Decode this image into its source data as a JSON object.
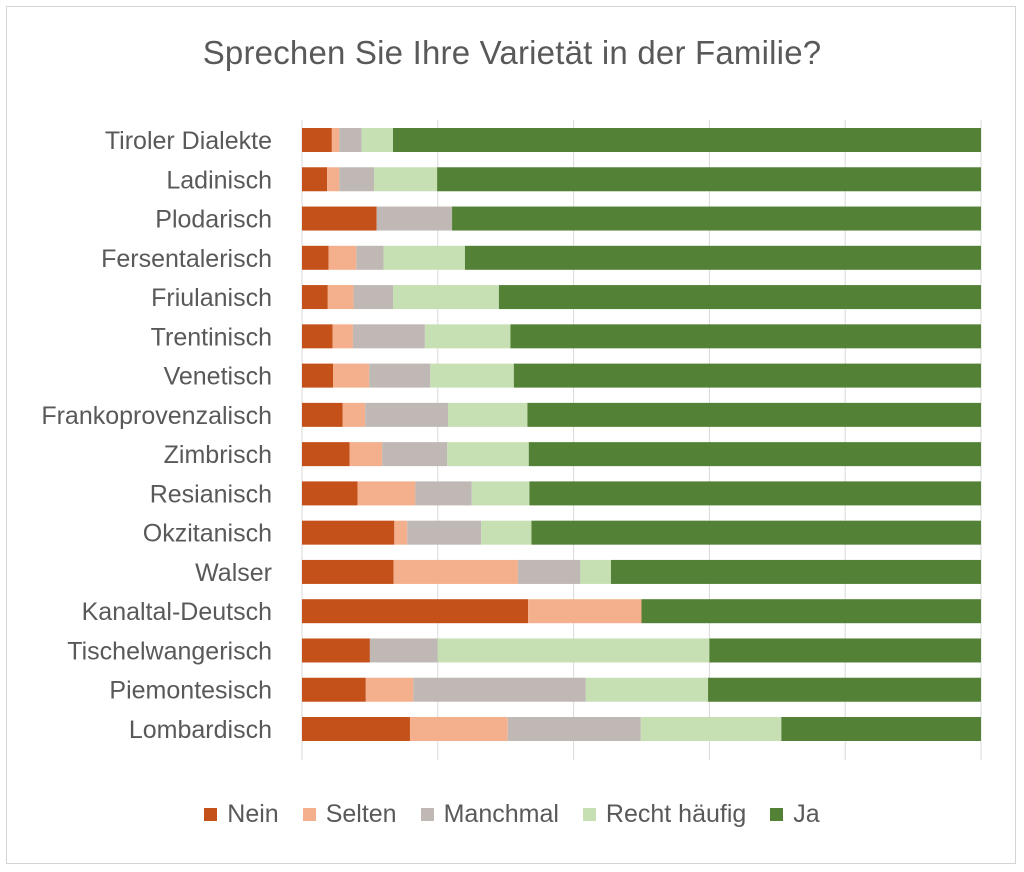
{
  "chart_data": {
    "type": "bar",
    "orientation": "horizontal",
    "stacked": true,
    "percent": true,
    "title": "Sprechen Sie Ihre Varietät in der Familie?",
    "xlim": [
      0,
      100
    ],
    "grid": true,
    "legend_position": "bottom",
    "categories": [
      "Tiroler Dialekte",
      "Ladinisch",
      "Plodarisch",
      "Fersentalerisch",
      "Friulanisch",
      "Trentinisch",
      "Venetisch",
      "Frankoprovenzalisch",
      "Zimbrisch",
      "Resianisch",
      "Okzitanisch",
      "Walser",
      "Kanaltal-Deutsch",
      "Tischelwangerisch",
      "Piemontesisch",
      "Lombardisch"
    ],
    "series": [
      {
        "name": "Nein",
        "color": "#c5511a",
        "values": [
          4.4,
          3.7,
          11.0,
          3.9,
          3.8,
          4.5,
          4.6,
          6.0,
          7.0,
          8.2,
          13.6,
          13.5,
          33.3,
          10.0,
          9.4,
          15.9
        ]
      },
      {
        "name": "Selten",
        "color": "#f4b08c",
        "values": [
          1.1,
          1.8,
          0.0,
          4.1,
          3.8,
          3.0,
          5.3,
          3.3,
          4.8,
          8.5,
          1.9,
          18.3,
          16.7,
          0.0,
          7.0,
          14.4
        ]
      },
      {
        "name": "Manchmal",
        "color": "#bfb8b4",
        "values": [
          3.3,
          5.1,
          11.1,
          4.0,
          5.8,
          10.6,
          9.0,
          12.2,
          9.6,
          8.3,
          10.9,
          9.2,
          0.0,
          10.0,
          25.4,
          19.6
        ]
      },
      {
        "name": "Recht häufig",
        "color": "#c6e0b4",
        "values": [
          4.6,
          9.3,
          0.0,
          12.0,
          15.6,
          12.6,
          12.3,
          11.7,
          12.0,
          8.5,
          7.4,
          4.5,
          0.0,
          40.0,
          18.0,
          20.7
        ]
      },
      {
        "name": "Ja",
        "color": "#538135",
        "values": [
          86.6,
          80.1,
          77.9,
          76.0,
          71.0,
          69.3,
          68.8,
          66.8,
          66.6,
          66.5,
          66.2,
          54.5,
          50.0,
          40.0,
          40.2,
          29.4
        ]
      }
    ]
  }
}
